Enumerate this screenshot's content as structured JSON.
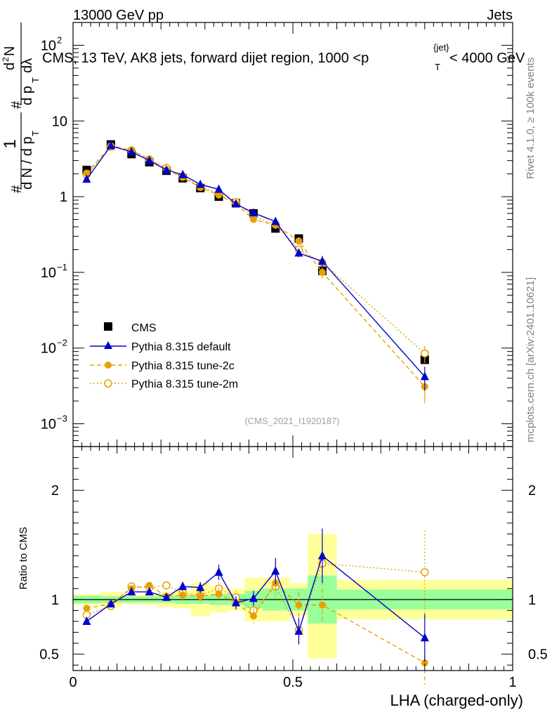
{
  "header": {
    "left": "13000 GeV pp",
    "right": "Jets"
  },
  "chart_data": {
    "type": "scatter",
    "title": "CMS, 13 TeV, AK8 jets, forward dijet region, 1000 <p_T^{jet}< 4000 GeV",
    "title_main": "CMS, 13 TeV, AK8 jets, forward dijet region, 1000 <p",
    "title_sup": "{jet}",
    "title_sub": "T",
    "title_tail": "< 4000 GeV",
    "analysis_id": "(CMS_2021_I1920187)",
    "xlabel": "LHA (charged-only)",
    "ylabel_ratio": "Ratio to CMS",
    "ylabel_main": "#frac{1}{d N / d p_T} #frac{d^2N}{d p_T d lambda}",
    "ylabel_parts": {
      "one": "1",
      "hash": "#",
      "dndpt": "d N / d p",
      "sub_t": "T",
      "d2n": "d",
      "sup2": "2",
      "n": "N",
      "dpt": "d p",
      "dlambda": "dλ"
    },
    "xlim": [
      0,
      1
    ],
    "ylim_main": [
      0.0005,
      200
    ],
    "ylim_ratio": [
      0.35,
      2.4
    ],
    "x_ticks": [
      {
        "v": 0,
        "label": "0"
      },
      {
        "v": 0.5,
        "label": "0.5"
      },
      {
        "v": 1,
        "label": "1"
      }
    ],
    "y_ticks_main": [
      {
        "v": 100,
        "base": "10",
        "exp": "2"
      },
      {
        "v": 10,
        "base": "10",
        "exp": ""
      },
      {
        "v": 1,
        "base": "1",
        "exp": ""
      },
      {
        "v": 0.1,
        "base": "10",
        "exp": "−1"
      },
      {
        "v": 0.01,
        "base": "10",
        "exp": "−2"
      },
      {
        "v": 0.001,
        "base": "10",
        "exp": "−3"
      }
    ],
    "y_ticks_ratio": [
      {
        "v": 2,
        "label": "2"
      },
      {
        "v": 1,
        "label": "1"
      },
      {
        "v": 0.5,
        "label": "0.5"
      }
    ],
    "bin_edges": [
      0.0,
      0.0625,
      0.111,
      0.1545,
      0.194,
      0.231,
      0.268,
      0.3115,
      0.352,
      0.39,
      0.4315,
      0.4925,
      0.534,
      0.6,
      1.0
    ],
    "x": [
      0.031,
      0.086,
      0.133,
      0.1735,
      0.2125,
      0.2495,
      0.2895,
      0.3315,
      0.3705,
      0.4105,
      0.4605,
      0.5135,
      0.567,
      0.8
    ],
    "series": [
      {
        "name": "CMS",
        "style": "square",
        "color": "#000000",
        "values": [
          2.25,
          4.9,
          3.65,
          2.85,
          2.2,
          1.75,
          1.3,
          1.0,
          0.82,
          0.6,
          0.38,
          0.28,
          0.105,
          0.007
        ],
        "yerr_frac": [
          0.03,
          0.03,
          0.03,
          0.03,
          0.03,
          0.03,
          0.03,
          0.03,
          0.03,
          0.03,
          0.04,
          0.05,
          0.08,
          0.1
        ]
      },
      {
        "name": "Pythia 8.315 default",
        "style": "triangle",
        "color": "#0000cc",
        "values": [
          1.7,
          4.7,
          3.9,
          3.0,
          2.25,
          1.95,
          1.45,
          1.25,
          0.8,
          0.61,
          0.47,
          0.18,
          0.14,
          0.0042
        ],
        "yerr_frac": [
          0.04,
          0.03,
          0.03,
          0.03,
          0.03,
          0.04,
          0.04,
          0.05,
          0.05,
          0.06,
          0.1,
          0.12,
          0.18,
          0.35
        ]
      },
      {
        "name": "Pythia 8.315 tune-2c",
        "style": "circle",
        "color": "#e8a000",
        "values": [
          2.05,
          4.7,
          4.1,
          3.15,
          2.25,
          1.8,
          1.32,
          1.05,
          0.8,
          0.5,
          0.42,
          0.26,
          0.1,
          0.0031
        ],
        "yerr_frac": [
          0.04,
          0.03,
          0.03,
          0.03,
          0.03,
          0.04,
          0.04,
          0.05,
          0.05,
          0.06,
          0.1,
          0.12,
          0.18,
          0.4
        ]
      },
      {
        "name": "Pythia 8.315 tune-2m",
        "style": "open-circle",
        "color": "#e8a000",
        "values": [
          1.95,
          4.55,
          4.1,
          3.1,
          2.4,
          1.85,
          1.35,
          1.1,
          0.85,
          0.55,
          0.43,
          0.2,
          0.135,
          0.0085
        ],
        "yerr_frac": [
          0.04,
          0.03,
          0.03,
          0.03,
          0.03,
          0.04,
          0.04,
          0.05,
          0.05,
          0.06,
          0.1,
          0.12,
          0.18,
          0.25
        ]
      }
    ],
    "ratios": {
      "default": {
        "values": [
          0.8,
          0.96,
          1.07,
          1.07,
          1.02,
          1.12,
          1.11,
          1.25,
          0.97,
          1.01,
          1.26,
          0.71,
          1.4,
          0.65
        ],
        "err": [
          0.03,
          0.02,
          0.03,
          0.03,
          0.03,
          0.04,
          0.05,
          0.07,
          0.06,
          0.07,
          0.12,
          0.12,
          0.25,
          0.22
        ]
      },
      "tune2c": {
        "values": [
          0.92,
          0.96,
          1.1,
          1.13,
          1.03,
          1.04,
          1.03,
          1.05,
          0.97,
          0.85,
          1.15,
          0.95,
          0.95,
          0.42
        ],
        "err": [
          0.03,
          0.02,
          0.03,
          0.03,
          0.03,
          0.04,
          0.05,
          0.06,
          0.06,
          0.07,
          0.1,
          0.12,
          0.15,
          0.2
        ]
      },
      "tune2m": {
        "values": [
          0.86,
          0.94,
          1.12,
          1.11,
          1.13,
          1.06,
          1.04,
          1.1,
          1.02,
          0.9,
          1.12,
          0.72,
          1.33,
          1.25
        ],
        "err": [
          0.03,
          0.02,
          0.03,
          0.03,
          0.03,
          0.04,
          0.05,
          0.06,
          0.06,
          0.07,
          0.12,
          0.12,
          0.2,
          0.38
        ]
      }
    },
    "bands_green": [
      [
        0.965,
        1.035
      ],
      [
        0.97,
        1.03
      ],
      [
        0.97,
        1.03
      ],
      [
        0.97,
        1.03
      ],
      [
        0.97,
        1.03
      ],
      [
        0.96,
        1.04
      ],
      [
        0.96,
        1.04
      ],
      [
        0.95,
        1.05
      ],
      [
        0.95,
        1.05
      ],
      [
        0.92,
        1.08
      ],
      [
        0.9,
        1.1
      ],
      [
        0.9,
        1.1
      ],
      [
        0.78,
        1.22
      ],
      [
        0.91,
        1.09
      ]
    ],
    "bands_yellow": [
      [
        0.95,
        1.05
      ],
      [
        0.93,
        1.07
      ],
      [
        0.96,
        1.04
      ],
      [
        0.95,
        1.05
      ],
      [
        0.93,
        1.07
      ],
      [
        0.92,
        1.08
      ],
      [
        0.85,
        1.15
      ],
      [
        0.88,
        1.12
      ],
      [
        0.9,
        1.1
      ],
      [
        0.8,
        1.2
      ],
      [
        0.8,
        1.2
      ],
      [
        0.85,
        1.15
      ],
      [
        0.46,
        1.6
      ],
      [
        0.82,
        1.18
      ]
    ],
    "legend_position": "mid-left"
  },
  "side_text": {
    "rivet": "Rivet 4.1.0, ≥ 100k events",
    "mcplots": "mcplots.cern.ch [arXiv:2401.10621]"
  },
  "legend": [
    {
      "label": "CMS"
    },
    {
      "label": "Pythia 8.315 default"
    },
    {
      "label": "Pythia 8.315 tune-2c"
    },
    {
      "label": "Pythia 8.315 tune-2m"
    }
  ]
}
